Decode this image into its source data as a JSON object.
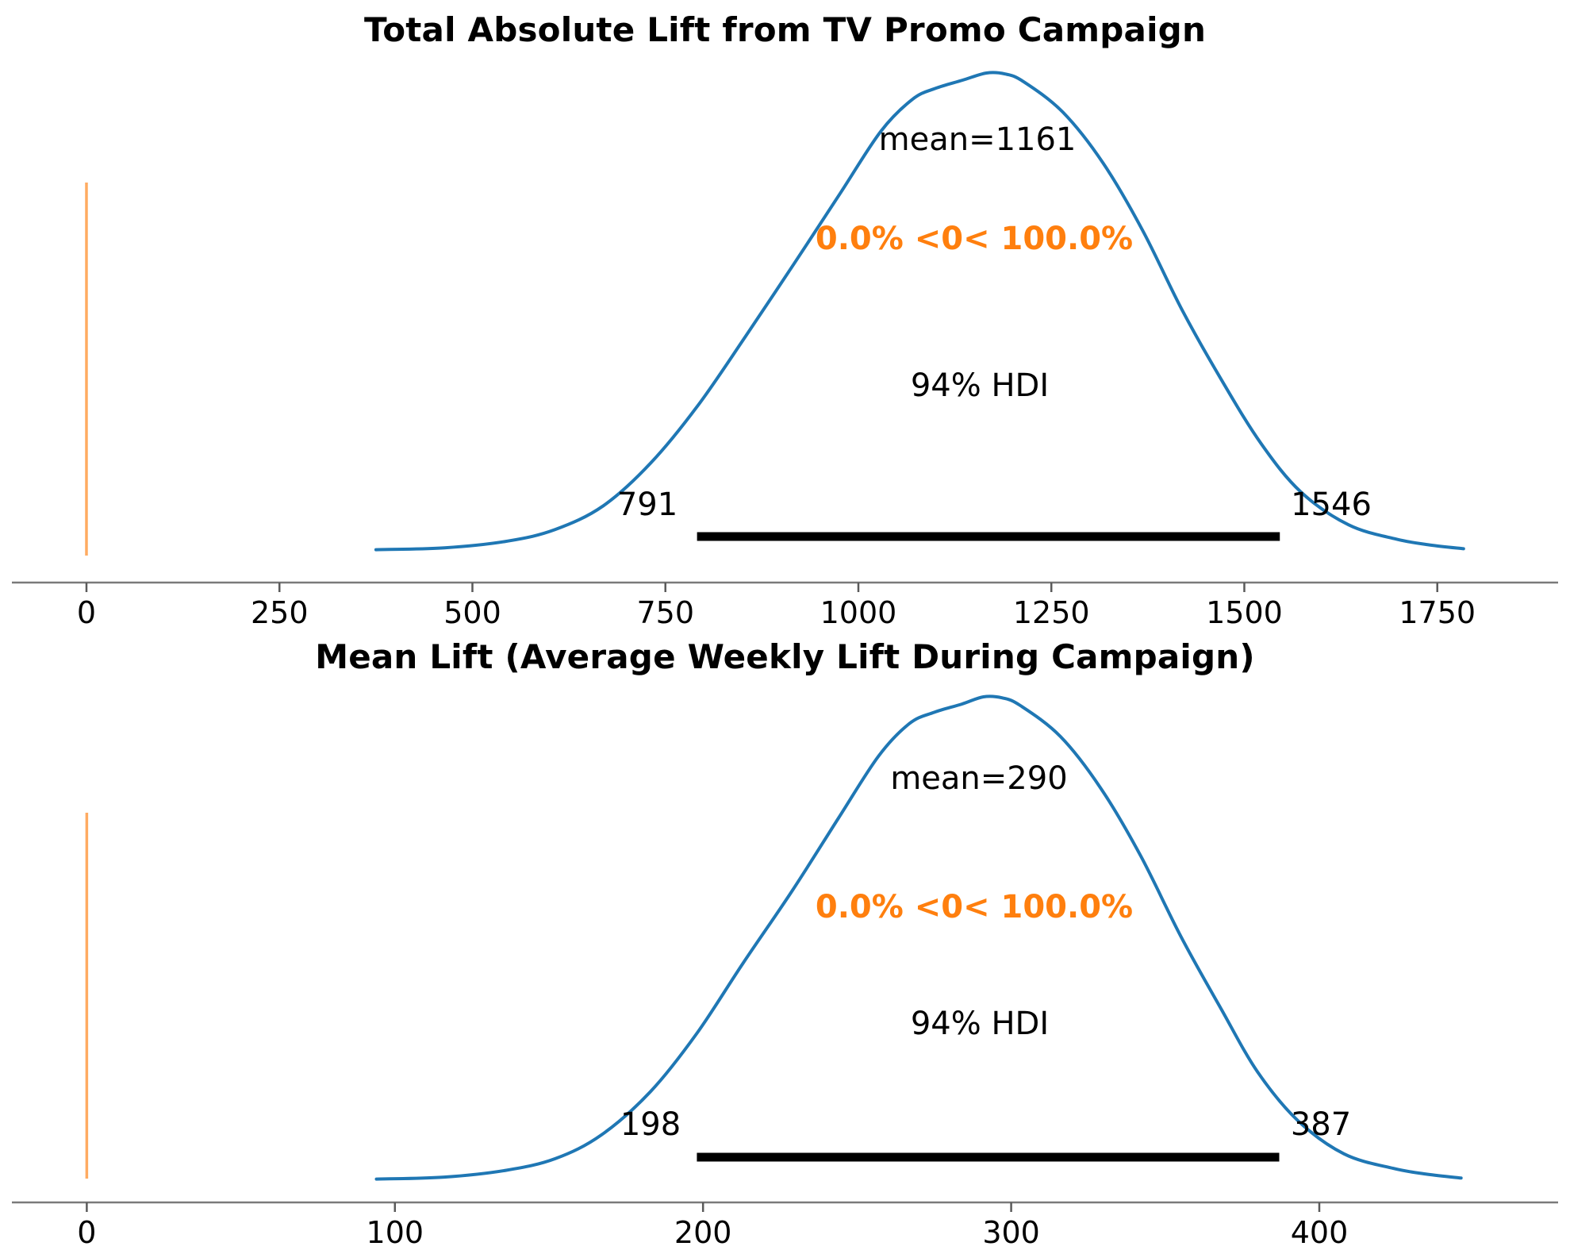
{
  "figure": {
    "background": "#ffffff"
  },
  "colors": {
    "kde_curve": "#1f77b4",
    "ref_line_orange": "#ff7f0e",
    "ref_text_orange": "#ff7f0e",
    "hdi_bar": "#000000",
    "annotation_text": "#000000",
    "axis_spine": "#7a7a7a",
    "axis_tick": "#5a5a5a"
  },
  "chart_data": [
    {
      "type": "kde",
      "title": "Total Absolute Lift from TV Promo Campaign",
      "mean": 1161,
      "mean_label": "mean=1161",
      "ref_value": 0,
      "ref_val_label": "0.0% <0< 100.0%",
      "hdi_label": "94% HDI",
      "hdi_interval": [
        791,
        1546
      ],
      "hdi_lower_label": "791",
      "hdi_upper_label": "1546",
      "x_tick_values": [
        0,
        250,
        500,
        750,
        1000,
        1250,
        1500,
        1750
      ],
      "x_tick_labels": [
        "0",
        "250",
        "500",
        "750",
        "1000",
        "1250",
        "1500",
        "1750"
      ],
      "xlim": [
        -96.6,
        1906.5
      ],
      "ylim": [
        0,
        1.0
      ],
      "grid": false,
      "legend": "none",
      "xlabel": "",
      "ylabel": "",
      "curve": [
        [
          375,
          0.004
        ],
        [
          464,
          0.008
        ],
        [
          546,
          0.022
        ],
        [
          607,
          0.046
        ],
        [
          669,
          0.095
        ],
        [
          731,
          0.185
        ],
        [
          792,
          0.305
        ],
        [
          854,
          0.45
        ],
        [
          916,
          0.6
        ],
        [
          977,
          0.75
        ],
        [
          1029,
          0.878
        ],
        [
          1070,
          0.945
        ],
        [
          1100,
          0.968
        ],
        [
          1135,
          0.985
        ],
        [
          1166,
          1.0
        ],
        [
          1190,
          0.998
        ],
        [
          1214,
          0.982
        ],
        [
          1265,
          0.918
        ],
        [
          1317,
          0.812
        ],
        [
          1368,
          0.672
        ],
        [
          1419,
          0.506
        ],
        [
          1471,
          0.357
        ],
        [
          1522,
          0.225
        ],
        [
          1573,
          0.125
        ],
        [
          1635,
          0.056
        ],
        [
          1697,
          0.026
        ],
        [
          1740,
          0.014
        ],
        [
          1784,
          0.006
        ]
      ]
    },
    {
      "type": "kde",
      "title": "Mean Lift (Average Weekly Lift During Campaign)",
      "mean": 290,
      "mean_label": "mean=290",
      "ref_value": 0,
      "ref_val_label": "0.0% <0< 100.0%",
      "hdi_label": "94% HDI",
      "hdi_interval": [
        198,
        387
      ],
      "hdi_lower_label": "198",
      "hdi_upper_label": "387",
      "x_tick_values": [
        0,
        100,
        200,
        300,
        400
      ],
      "x_tick_labels": [
        "0",
        "100",
        "200",
        "300",
        "400"
      ],
      "xlim": [
        -24.3,
        477.5
      ],
      "ylim": [
        0,
        1.0
      ],
      "grid": false,
      "legend": "none",
      "xlabel": "",
      "ylabel": "",
      "curve": [
        [
          94,
          0.004
        ],
        [
          116,
          0.008
        ],
        [
          136,
          0.022
        ],
        [
          152,
          0.046
        ],
        [
          167,
          0.095
        ],
        [
          183,
          0.185
        ],
        [
          198,
          0.305
        ],
        [
          213,
          0.45
        ],
        [
          229,
          0.6
        ],
        [
          244,
          0.75
        ],
        [
          257,
          0.878
        ],
        [
          267,
          0.945
        ],
        [
          275,
          0.968
        ],
        [
          284,
          0.985
        ],
        [
          291,
          1.0
        ],
        [
          297,
          0.998
        ],
        [
          303,
          0.982
        ],
        [
          316,
          0.918
        ],
        [
          329,
          0.812
        ],
        [
          342,
          0.672
        ],
        [
          355,
          0.506
        ],
        [
          368,
          0.357
        ],
        [
          380,
          0.225
        ],
        [
          393,
          0.125
        ],
        [
          408,
          0.056
        ],
        [
          424,
          0.026
        ],
        [
          435,
          0.014
        ],
        [
          446,
          0.006
        ]
      ]
    }
  ]
}
